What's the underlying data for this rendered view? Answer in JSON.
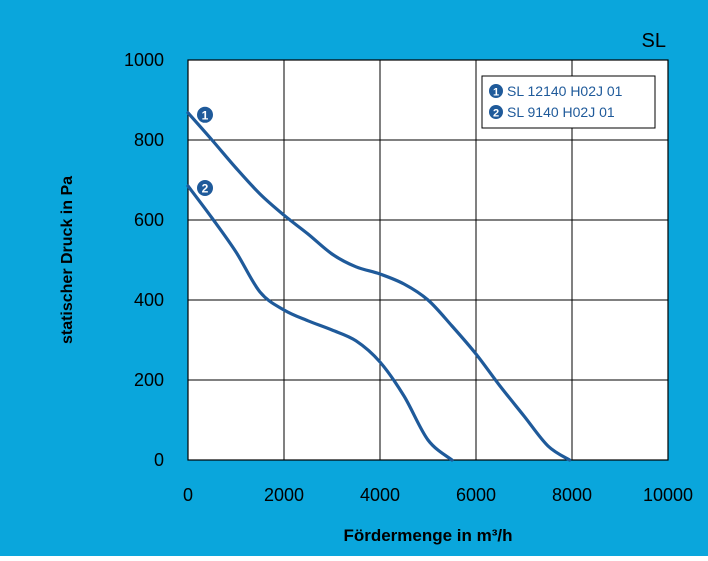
{
  "colors": {
    "background": "#0aa6dc",
    "plot_background": "#ffffff",
    "curve": "#1f5a9a",
    "grid": "#000000",
    "text": "#000000"
  },
  "chart_data": {
    "type": "line",
    "title": "SL",
    "xlabel": "Fördermenge in m³/h",
    "ylabel": "statischer Druck in Pa",
    "xlim": [
      0,
      10000
    ],
    "ylim": [
      0,
      1000
    ],
    "xticks": [
      "0",
      "2000",
      "4000",
      "6000",
      "8000",
      "10000"
    ],
    "yticks": [
      "0",
      "200",
      "400",
      "600",
      "800",
      "1000"
    ],
    "grid": true,
    "legend": "top-right",
    "series": [
      {
        "name": "SL 12140 H02J 01",
        "marker": "1",
        "x": [
          0,
          500,
          1000,
          1500,
          2000,
          2500,
          3000,
          3500,
          4000,
          4500,
          5000,
          5500,
          6000,
          6500,
          7000,
          7500,
          7950
        ],
        "y": [
          868,
          800,
          730,
          665,
          612,
          565,
          515,
          483,
          465,
          440,
          400,
          335,
          265,
          185,
          110,
          35,
          0
        ]
      },
      {
        "name": "SL 9140 H02J 01",
        "marker": "2",
        "x": [
          0,
          500,
          1000,
          1500,
          2000,
          2500,
          3000,
          3500,
          4000,
          4500,
          5000,
          5500
        ],
        "y": [
          685,
          605,
          520,
          420,
          375,
          348,
          325,
          298,
          245,
          160,
          50,
          0
        ]
      }
    ]
  }
}
